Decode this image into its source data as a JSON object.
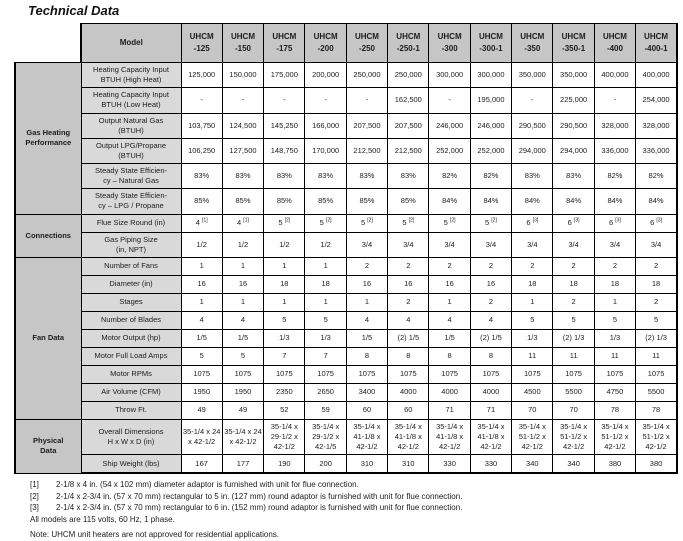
{
  "title": "Technical Data",
  "colors": {
    "header_bg": "#c6c6c6",
    "label_bg": "#d9d9d9",
    "border": "#000000",
    "text": "#1c1c1c"
  },
  "table": {
    "model_header": "Model",
    "brand": "UHCM",
    "models": [
      "-125",
      "-150",
      "-175",
      "-200",
      "-250",
      "-250-1",
      "-300",
      "-300-1",
      "-350",
      "-350-1",
      "-400",
      "-400-1"
    ],
    "groups": [
      {
        "name": "Gas Heating\nPerformance",
        "rows": [
          {
            "label": "Heating Capacity Input\nBTUH (High Heat)",
            "values": [
              "125,000",
              "150,000",
              "175,000",
              "200,000",
              "250,000",
              "250,000",
              "300,000",
              "300,000",
              "350,000",
              "350,000",
              "400,000",
              "400,000"
            ]
          },
          {
            "label": "Heating Capacity Input\nBTUH (Low Heat)",
            "values": [
              "-",
              "-",
              "-",
              "-",
              "-",
              "162,500",
              "-",
              "195,000",
              "-",
              "225,000",
              "-",
              "254,000"
            ]
          },
          {
            "label": "Output Natural Gas\n(BTUH)",
            "values": [
              "103,750",
              "124,500",
              "145,250",
              "166,000",
              "207,500",
              "207,500",
              "246,000",
              "246,000",
              "290,500",
              "290,500",
              "328,000",
              "328,000"
            ]
          },
          {
            "label": "Output LPG/Propane\n(BTUH)",
            "values": [
              "106,250",
              "127,500",
              "148,750",
              "170,000",
              "212,500",
              "212,500",
              "252,000",
              "252,000",
              "294,000",
              "294,000",
              "336,000",
              "336,000"
            ]
          },
          {
            "label": "Steady State Efficien-\ncy – Natural Gas",
            "values": [
              "83%",
              "83%",
              "83%",
              "83%",
              "83%",
              "83%",
              "82%",
              "82%",
              "83%",
              "83%",
              "82%",
              "82%"
            ]
          },
          {
            "label": "Steady State Efficien-\ncy – LPG / Propane",
            "values": [
              "85%",
              "85%",
              "85%",
              "85%",
              "85%",
              "85%",
              "84%",
              "84%",
              "84%",
              "84%",
              "84%",
              "84%"
            ]
          }
        ]
      },
      {
        "name": "Connections",
        "rows": [
          {
            "label": "Flue Size Round (in)",
            "values": [
              "4 [1]",
              "4 [1]",
              "5 [2]",
              "5 [2]",
              "5 [2]",
              "5 [2]",
              "5 [2]",
              "5 [2]",
              "6 [3]",
              "6 [3]",
              "6 [3]",
              "6 [3]"
            ]
          },
          {
            "label": "Gas Piping Size\n(in, NPT)",
            "values": [
              "1/2",
              "1/2",
              "1/2",
              "1/2",
              "3/4",
              "3/4",
              "3/4",
              "3/4",
              "3/4",
              "3/4",
              "3/4",
              "3/4"
            ]
          }
        ]
      },
      {
        "name": "Fan Data",
        "rows": [
          {
            "label": "Number of Fans",
            "values": [
              "1",
              "1",
              "1",
              "1",
              "2",
              "2",
              "2",
              "2",
              "2",
              "2",
              "2",
              "2"
            ]
          },
          {
            "label": "Diameter (in)",
            "values": [
              "16",
              "16",
              "18",
              "18",
              "16",
              "16",
              "16",
              "16",
              "18",
              "18",
              "18",
              "18"
            ]
          },
          {
            "label": "Stages",
            "values": [
              "1",
              "1",
              "1",
              "1",
              "1",
              "2",
              "1",
              "2",
              "1",
              "2",
              "1",
              "2"
            ]
          },
          {
            "label": "Number of Blades",
            "values": [
              "4",
              "4",
              "5",
              "5",
              "4",
              "4",
              "4",
              "4",
              "5",
              "5",
              "5",
              "5"
            ]
          },
          {
            "label": "Motor Output (hp)",
            "values": [
              "1/5",
              "1/5",
              "1/3",
              "1/3",
              "1/5",
              "(2) 1/5",
              "1/5",
              "(2) 1/5",
              "1/3",
              "(2) 1/3",
              "1/3",
              "(2) 1/3"
            ]
          },
          {
            "label": "Motor Full Load Amps",
            "values": [
              "5",
              "5",
              "7",
              "7",
              "8",
              "8",
              "8",
              "8",
              "11",
              "11",
              "11",
              "11"
            ]
          },
          {
            "label": "Motor RPMs",
            "values": [
              "1075",
              "1075",
              "1075",
              "1075",
              "1075",
              "1075",
              "1075",
              "1075",
              "1075",
              "1075",
              "1075",
              "1075"
            ]
          },
          {
            "label": "Air Volume (CFM)",
            "values": [
              "1950",
              "1950",
              "2350",
              "2650",
              "3400",
              "4000",
              "4000",
              "4000",
              "4500",
              "5500",
              "4750",
              "5500"
            ]
          },
          {
            "label": "Throw Ft.",
            "values": [
              "49",
              "49",
              "52",
              "59",
              "60",
              "60",
              "71",
              "71",
              "70",
              "70",
              "78",
              "78"
            ]
          }
        ]
      },
      {
        "name": "Physical\nData",
        "rows": [
          {
            "label": "Overall Dimensions\nH x W x D (in)",
            "values": [
              "35-1/4 x 24 x 42-1/2",
              "35-1/4 x 24 x 42-1/2",
              "35-1/4 x 29-1/2 x 42-1/2",
              "35-1/4 x 29-1/2 x 42-1/5",
              "35-1/4 x 41-1/8 x 42-1/2",
              "35-1/4 x 41-1/8 x 42-1/2",
              "35-1/4 x 41-1/8 x 42-1/2",
              "35-1/4 x 41-1/8 x 42-1/2",
              "35-1/4 x 51-1/2 x 42-1/2",
              "35-1/4 x 51-1/2 x 42-1/2",
              "35-1/4 x 51-1/2 x 42-1/2",
              "35-1/4 x 51-1/2 x 42-1/2"
            ]
          },
          {
            "label": "Ship Weight (lbs)",
            "values": [
              "167",
              "177",
              "190",
              "200",
              "310",
              "310",
              "330",
              "330",
              "340",
              "340",
              "380",
              "380"
            ]
          }
        ]
      }
    ]
  },
  "footnotes": [
    {
      "marker": "[1]",
      "text": "2-1/8 x 4 in. (54 x 102 mm) diameter adaptor is furnished with unit for flue connection."
    },
    {
      "marker": "[2]",
      "text": "2-1/4 x 2-3/4 in. (57 x 70 mm) rectangular to 5 in. (127 mm) round adaptor is furnished with unit for flue connection."
    },
    {
      "marker": "[3]",
      "text": "2-1/4 x 2-3/4 in. (57 x 70 mm) rectangular to 6 in. (152 mm) round adaptor is furnished with unit for flue connection."
    }
  ],
  "notes": [
    "All models are 115 volts, 60 Hz, 1 phase.",
    "Note:  UHCM unit heaters are not approved for residential applications."
  ]
}
